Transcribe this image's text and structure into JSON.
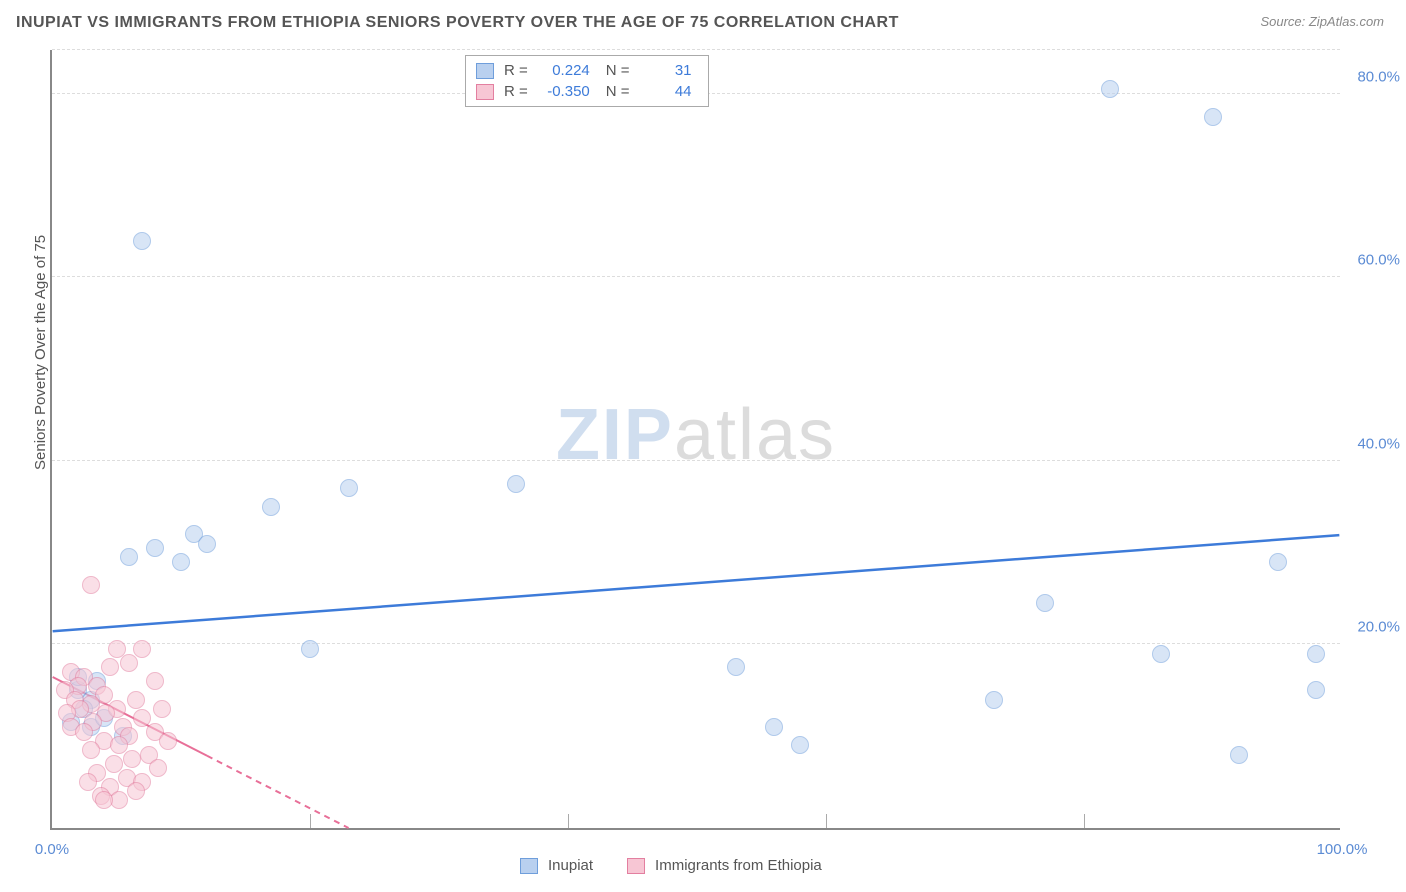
{
  "chart": {
    "type": "scatter",
    "title": "INUPIAT VS IMMIGRANTS FROM ETHIOPIA SENIORS POVERTY OVER THE AGE OF 75 CORRELATION CHART",
    "source": "Source: ZipAtlas.com",
    "ylabel": "Seniors Poverty Over the Age of 75",
    "background_color": "#ffffff",
    "grid_color": "#dddddd",
    "axis_color": "#888888",
    "tick_label_color": "#5b8bd4",
    "tick_fontsize": 15,
    "title_fontsize": 16,
    "title_color": "#555555",
    "label_fontsize": 15,
    "xlim": [
      0,
      100
    ],
    "ylim": [
      0,
      85
    ],
    "yticks": [
      20,
      40,
      60,
      80
    ],
    "ytick_labels": [
      "20.0%",
      "40.0%",
      "60.0%",
      "80.0%"
    ],
    "xticks": [
      0,
      100
    ],
    "xtick_labels": [
      "0.0%",
      "100.0%"
    ],
    "xtick_minors": [
      20,
      40,
      60,
      80
    ],
    "marker_radius": 9,
    "marker_opacity": 0.55,
    "marker_border_width": 1.5,
    "watermark": {
      "text_a": "ZIP",
      "text_b": "atlas",
      "color_a": "rgba(120,160,210,0.35)",
      "color_b": "rgba(140,140,140,0.30)",
      "fontsize": 72
    },
    "correlation_legend": {
      "rows": [
        {
          "swatch_fill": "#b9d0ef",
          "swatch_border": "#6f9edb",
          "r_label": "R =",
          "r_value": "0.224",
          "n_label": "N =",
          "n_value": "31"
        },
        {
          "swatch_fill": "#f7c6d4",
          "swatch_border": "#e37fa0",
          "r_label": "R =",
          "r_value": "-0.350",
          "n_label": "N =",
          "n_value": "44"
        }
      ]
    },
    "series_legend": {
      "items": [
        {
          "swatch_fill": "#b9d0ef",
          "swatch_border": "#6f9edb",
          "label": "Inupiat"
        },
        {
          "swatch_fill": "#f7c6d4",
          "swatch_border": "#e37fa0",
          "label": "Immigrants from Ethiopia"
        }
      ]
    },
    "series": [
      {
        "name": "Inupiat",
        "color_fill": "#b9d0ef",
        "color_border": "#6f9edb",
        "trend_color": "#3d7bd9",
        "trend_width": 2.5,
        "trend_dash": "none",
        "trend": {
          "x1": 0,
          "y1": 21.5,
          "x2": 100,
          "y2": 32.0
        },
        "points": [
          {
            "x": 7,
            "y": 64
          },
          {
            "x": 82,
            "y": 80.5
          },
          {
            "x": 90,
            "y": 77.5
          },
          {
            "x": 36,
            "y": 37.5
          },
          {
            "x": 23,
            "y": 37
          },
          {
            "x": 17,
            "y": 35
          },
          {
            "x": 11,
            "y": 32
          },
          {
            "x": 12,
            "y": 31
          },
          {
            "x": 8,
            "y": 30.5
          },
          {
            "x": 6,
            "y": 29.5
          },
          {
            "x": 10,
            "y": 29
          },
          {
            "x": 95,
            "y": 29
          },
          {
            "x": 77,
            "y": 24.5
          },
          {
            "x": 20,
            "y": 19.5
          },
          {
            "x": 86,
            "y": 19
          },
          {
            "x": 98,
            "y": 19
          },
          {
            "x": 53,
            "y": 17.5
          },
          {
            "x": 2,
            "y": 15
          },
          {
            "x": 98,
            "y": 15
          },
          {
            "x": 3,
            "y": 14
          },
          {
            "x": 73,
            "y": 14
          },
          {
            "x": 2.5,
            "y": 13
          },
          {
            "x": 56,
            "y": 11
          },
          {
            "x": 3,
            "y": 11
          },
          {
            "x": 58,
            "y": 9
          },
          {
            "x": 92,
            "y": 8
          },
          {
            "x": 1.5,
            "y": 11.5
          },
          {
            "x": 4,
            "y": 12
          },
          {
            "x": 2,
            "y": 16.5
          },
          {
            "x": 3.5,
            "y": 16
          },
          {
            "x": 5.5,
            "y": 10
          }
        ]
      },
      {
        "name": "Immigrants from Ethiopia",
        "color_fill": "#f7c6d4",
        "color_border": "#e37fa0",
        "trend_color": "#e86f98",
        "trend_width": 2,
        "trend_dash": "6,5",
        "trend_solid_until_x": 12,
        "trend": {
          "x1": 0,
          "y1": 16.5,
          "x2": 23,
          "y2": 0
        },
        "points": [
          {
            "x": 3,
            "y": 26.5
          },
          {
            "x": 5,
            "y": 19.5
          },
          {
            "x": 7,
            "y": 19.5
          },
          {
            "x": 6,
            "y": 18
          },
          {
            "x": 4.5,
            "y": 17.5
          },
          {
            "x": 1.5,
            "y": 17
          },
          {
            "x": 2.5,
            "y": 16.5
          },
          {
            "x": 8,
            "y": 16
          },
          {
            "x": 3.5,
            "y": 15.5
          },
          {
            "x": 2,
            "y": 15.5
          },
          {
            "x": 1,
            "y": 15
          },
          {
            "x": 4,
            "y": 14.5
          },
          {
            "x": 6.5,
            "y": 14
          },
          {
            "x": 1.8,
            "y": 14
          },
          {
            "x": 3,
            "y": 13.5
          },
          {
            "x": 8.5,
            "y": 13
          },
          {
            "x": 5,
            "y": 13
          },
          {
            "x": 2.2,
            "y": 13
          },
          {
            "x": 1.2,
            "y": 12.5
          },
          {
            "x": 4.2,
            "y": 12.5
          },
          {
            "x": 7,
            "y": 12
          },
          {
            "x": 3.2,
            "y": 11.5
          },
          {
            "x": 1.5,
            "y": 11
          },
          {
            "x": 5.5,
            "y": 11
          },
          {
            "x": 8,
            "y": 10.5
          },
          {
            "x": 2.5,
            "y": 10.5
          },
          {
            "x": 6,
            "y": 10
          },
          {
            "x": 9,
            "y": 9.5
          },
          {
            "x": 4,
            "y": 9.5
          },
          {
            "x": 5.2,
            "y": 9
          },
          {
            "x": 3,
            "y": 8.5
          },
          {
            "x": 7.5,
            "y": 8
          },
          {
            "x": 6.2,
            "y": 7.5
          },
          {
            "x": 4.8,
            "y": 7
          },
          {
            "x": 8.2,
            "y": 6.5
          },
          {
            "x": 3.5,
            "y": 6
          },
          {
            "x": 5.8,
            "y": 5.5
          },
          {
            "x": 2.8,
            "y": 5
          },
          {
            "x": 7,
            "y": 5
          },
          {
            "x": 4.5,
            "y": 4.5
          },
          {
            "x": 6.5,
            "y": 4
          },
          {
            "x": 3.8,
            "y": 3.5
          },
          {
            "x": 5.2,
            "y": 3
          },
          {
            "x": 4,
            "y": 3
          }
        ]
      }
    ]
  }
}
